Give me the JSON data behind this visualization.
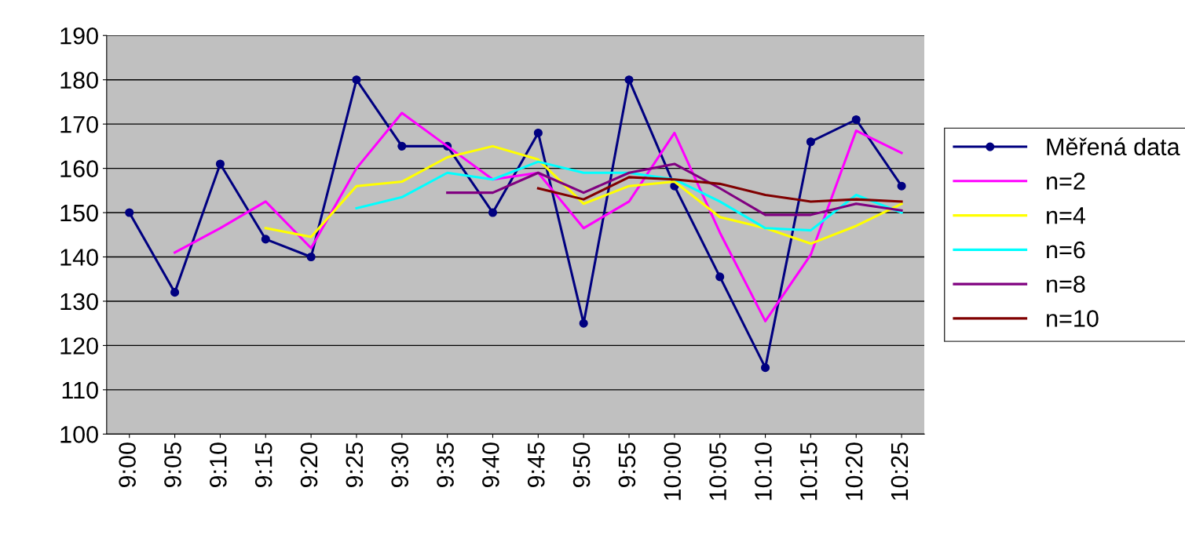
{
  "chart_data": {
    "type": "line",
    "categories": [
      "9:00",
      "9:05",
      "9:10",
      "9:15",
      "9:20",
      "9:25",
      "9:30",
      "9:35",
      "9:40",
      "9:45",
      "9:50",
      "9:55",
      "10:00",
      "10:05",
      "10:10",
      "10:15",
      "10:20",
      "10:25"
    ],
    "series": [
      {
        "name": "Měřená data",
        "color": "#000080",
        "marker": "circle",
        "values": [
          150,
          132,
          161,
          144,
          140,
          180,
          165,
          165,
          150,
          168,
          125,
          180,
          156,
          135.5,
          115,
          166,
          171,
          156
        ]
      },
      {
        "name": "n=2",
        "color": "#ff00ff",
        "values": [
          null,
          141,
          146.5,
          152.5,
          142,
          160,
          172.5,
          165,
          157.5,
          159,
          146.5,
          152.5,
          168,
          145.5,
          125.5,
          140.5,
          168.5,
          163.5
        ]
      },
      {
        "name": "n=4",
        "color": "#ffff00",
        "values": [
          null,
          null,
          null,
          146.5,
          144.5,
          156,
          157,
          162.5,
          165,
          162,
          152,
          156,
          157,
          149,
          146.5,
          143,
          147,
          152
        ]
      },
      {
        "name": "n=6",
        "color": "#00ffff",
        "values": [
          null,
          null,
          null,
          null,
          null,
          151,
          153.5,
          159,
          157.5,
          161.5,
          159,
          159,
          157.5,
          152.5,
          146.5,
          146,
          154,
          150
        ]
      },
      {
        "name": "n=8",
        "color": "#800080",
        "values": [
          null,
          null,
          null,
          null,
          null,
          null,
          null,
          154.5,
          154.5,
          159,
          154.5,
          159,
          161,
          155.5,
          149.5,
          149.5,
          152,
          150.5
        ]
      },
      {
        "name": "n=10",
        "color": "#800000",
        "values": [
          null,
          null,
          null,
          null,
          null,
          null,
          null,
          null,
          null,
          155.5,
          153,
          158,
          157.5,
          156.5,
          154,
          152.5,
          153,
          152.5
        ]
      }
    ],
    "ylim": [
      100,
      190
    ],
    "yticks": [
      100,
      110,
      120,
      130,
      140,
      150,
      160,
      170,
      180,
      190
    ],
    "grid": "y",
    "legend": "right"
  }
}
